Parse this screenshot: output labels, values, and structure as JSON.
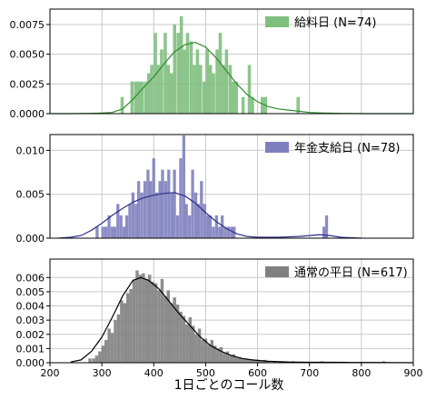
{
  "chart_data": {
    "type": "histogram",
    "xlabel": "1日ごとのコール数",
    "xlim": [
      200,
      900
    ],
    "xticks": [
      200,
      300,
      400,
      500,
      600,
      700,
      800,
      900
    ],
    "shared_x": true,
    "grid": true,
    "legend_position": "top-right",
    "panels": [
      {
        "legend": "給料日 (N=74)",
        "color": "#7fbf7f",
        "line_color": "#2e8b2e",
        "ylim": [
          0,
          0.0088
        ],
        "yticks": [
          "0.0000",
          "0.0025",
          "0.0050",
          "0.0075"
        ],
        "ytick_values": [
          0,
          0.0025,
          0.005,
          0.0075
        ],
        "bins": [
          [
            336,
            0.0014
          ],
          [
            355,
            0.0027
          ],
          [
            362,
            0.0027
          ],
          [
            368,
            0.0027
          ],
          [
            374,
            0.0027
          ],
          [
            381,
            0.0027
          ],
          [
            387,
            0.0034
          ],
          [
            393,
            0.0041
          ],
          [
            400,
            0.0068
          ],
          [
            406,
            0.0041
          ],
          [
            412,
            0.0054
          ],
          [
            419,
            0.0068
          ],
          [
            425,
            0.0041
          ],
          [
            431,
            0.0034
          ],
          [
            437,
            0.0075
          ],
          [
            444,
            0.0068
          ],
          [
            450,
            0.0082
          ],
          [
            456,
            0.0054
          ],
          [
            462,
            0.0068
          ],
          [
            469,
            0.0061
          ],
          [
            475,
            0.0041
          ],
          [
            481,
            0.0054
          ],
          [
            487,
            0.0041
          ],
          [
            494,
            0.0027
          ],
          [
            500,
            0.0054
          ],
          [
            506,
            0.0041
          ],
          [
            512,
            0.0034
          ],
          [
            519,
            0.0054
          ],
          [
            525,
            0.0068
          ],
          [
            531,
            0.0041
          ],
          [
            537,
            0.0054
          ],
          [
            544,
            0.0041
          ],
          [
            550,
            0.0027
          ],
          [
            556,
            0.0027
          ],
          [
            569,
            0.0014
          ],
          [
            581,
            0.0041
          ],
          [
            587,
            0.0014
          ],
          [
            606,
            0.0014
          ],
          [
            612,
            0.0014
          ],
          [
            675,
            0.0014
          ]
        ],
        "bin_width": 6.25,
        "kde": [
          [
            200,
            0
          ],
          [
            240,
            0
          ],
          [
            280,
            2e-05
          ],
          [
            300,
            5e-05
          ],
          [
            320,
            0.0001
          ],
          [
            340,
            0.0004
          ],
          [
            360,
            0.0012
          ],
          [
            380,
            0.0022
          ],
          [
            400,
            0.0031
          ],
          [
            420,
            0.0042
          ],
          [
            440,
            0.0052
          ],
          [
            460,
            0.0058
          ],
          [
            480,
            0.006
          ],
          [
            500,
            0.0056
          ],
          [
            520,
            0.0047
          ],
          [
            540,
            0.0036
          ],
          [
            560,
            0.0025
          ],
          [
            580,
            0.0016
          ],
          [
            600,
            0.001
          ],
          [
            620,
            0.0006
          ],
          [
            640,
            0.0004
          ],
          [
            660,
            0.0003
          ],
          [
            680,
            0.0002
          ],
          [
            700,
            0.0001
          ],
          [
            720,
            6e-05
          ],
          [
            760,
            2e-05
          ],
          [
            800,
            0
          ],
          [
            900,
            0
          ]
        ]
      },
      {
        "legend": "年金支給日 (N=78)",
        "color": "#7f7fbf",
        "line_color": "#2e2e8b",
        "ylim": [
          0,
          0.0118
        ],
        "yticks": [
          "0.000",
          "0.005",
          "0.010"
        ],
        "ytick_values": [
          0,
          0.005,
          0.01
        ],
        "bins": [
          [
            288,
            0.0013
          ],
          [
            299,
            0.0013
          ],
          [
            305,
            0.0013
          ],
          [
            311,
            0.0026
          ],
          [
            317,
            0.0013
          ],
          [
            322,
            0.0013
          ],
          [
            328,
            0.0039
          ],
          [
            334,
            0.0026
          ],
          [
            340,
            0.0013
          ],
          [
            345,
            0.0026
          ],
          [
            351,
            0.0039
          ],
          [
            357,
            0.0052
          ],
          [
            363,
            0.0039
          ],
          [
            368,
            0.0065
          ],
          [
            374,
            0.0052
          ],
          [
            380,
            0.0065
          ],
          [
            386,
            0.0078
          ],
          [
            391,
            0.0065
          ],
          [
            397,
            0.0091
          ],
          [
            403,
            0.0052
          ],
          [
            409,
            0.0065
          ],
          [
            414,
            0.0078
          ],
          [
            420,
            0.0065
          ],
          [
            426,
            0.0078
          ],
          [
            432,
            0.0052
          ],
          [
            437,
            0.0078
          ],
          [
            443,
            0.0026
          ],
          [
            449,
            0.0091
          ],
          [
            455,
            0.0117
          ],
          [
            460,
            0.0039
          ],
          [
            466,
            0.0026
          ],
          [
            472,
            0.0078
          ],
          [
            478,
            0.0052
          ],
          [
            483,
            0.0039
          ],
          [
            489,
            0.0065
          ],
          [
            495,
            0.0039
          ],
          [
            501,
            0.0026
          ],
          [
            506,
            0.0026
          ],
          [
            512,
            0.0013
          ],
          [
            518,
            0.0026
          ],
          [
            524,
            0.0013
          ],
          [
            529,
            0.0026
          ],
          [
            535,
            0.0013
          ],
          [
            541,
            0.0013
          ],
          [
            547,
            0.0013
          ],
          [
            552,
            0.0013
          ],
          [
            725,
            0.0013
          ],
          [
            730,
            0.0026
          ]
        ],
        "bin_width": 5.75,
        "kde": [
          [
            215,
            0
          ],
          [
            240,
            0.0001
          ],
          [
            260,
            0.0003
          ],
          [
            280,
            0.0009
          ],
          [
            300,
            0.0017
          ],
          [
            320,
            0.0026
          ],
          [
            340,
            0.0034
          ],
          [
            360,
            0.0041
          ],
          [
            380,
            0.0046
          ],
          [
            400,
            0.0049
          ],
          [
            420,
            0.0051
          ],
          [
            440,
            0.0052
          ],
          [
            460,
            0.0048
          ],
          [
            480,
            0.004
          ],
          [
            500,
            0.0029
          ],
          [
            520,
            0.0019
          ],
          [
            540,
            0.0011
          ],
          [
            560,
            0.0005
          ],
          [
            580,
            0.0002
          ],
          [
            600,
            0.0001
          ],
          [
            640,
            0.0001
          ],
          [
            680,
            0.0002
          ],
          [
            700,
            0.0003
          ],
          [
            720,
            0.0004
          ],
          [
            740,
            0.0003
          ],
          [
            760,
            0.0001
          ],
          [
            800,
            0
          ]
        ]
      },
      {
        "legend": "通常の平日 (N=617)",
        "color": "#808080",
        "line_color": "#000000",
        "ylim": [
          0,
          0.0073
        ],
        "yticks": [
          "0.000",
          "0.001",
          "0.002",
          "0.003",
          "0.004",
          "0.005",
          "0.006"
        ],
        "ytick_values": [
          0,
          0.001,
          0.002,
          0.003,
          0.004,
          0.005,
          0.006
        ],
        "bins": [
          [
            274,
            0.0003
          ],
          [
            281,
            0.0003
          ],
          [
            287,
            0.0005
          ],
          [
            293,
            0.0008
          ],
          [
            299,
            0.0012
          ],
          [
            305,
            0.0016
          ],
          [
            311,
            0.0024
          ],
          [
            317,
            0.0021
          ],
          [
            323,
            0.003
          ],
          [
            329,
            0.0034
          ],
          [
            335,
            0.0044
          ],
          [
            341,
            0.0042
          ],
          [
            347,
            0.0049
          ],
          [
            353,
            0.0052
          ],
          [
            359,
            0.0058
          ],
          [
            365,
            0.0065
          ],
          [
            371,
            0.0062
          ],
          [
            377,
            0.0063
          ],
          [
            383,
            0.0059
          ],
          [
            389,
            0.0062
          ],
          [
            395,
            0.0057
          ],
          [
            401,
            0.0056
          ],
          [
            407,
            0.0051
          ],
          [
            413,
            0.0059
          ],
          [
            419,
            0.0047
          ],
          [
            425,
            0.0051
          ],
          [
            431,
            0.0042
          ],
          [
            437,
            0.0046
          ],
          [
            443,
            0.0041
          ],
          [
            449,
            0.0036
          ],
          [
            455,
            0.0033
          ],
          [
            461,
            0.0027
          ],
          [
            467,
            0.0032
          ],
          [
            473,
            0.0026
          ],
          [
            479,
            0.002
          ],
          [
            485,
            0.0024
          ],
          [
            491,
            0.0016
          ],
          [
            497,
            0.0017
          ],
          [
            503,
            0.0013
          ],
          [
            509,
            0.0016
          ],
          [
            515,
            0.0012
          ],
          [
            521,
            0.001
          ],
          [
            527,
            0.0011
          ],
          [
            533,
            0.0007
          ],
          [
            539,
            0.0008
          ],
          [
            545,
            0.0005
          ],
          [
            551,
            0.0006
          ],
          [
            557,
            0.0004
          ],
          [
            563,
            0.0004
          ],
          [
            569,
            0.0003
          ],
          [
            575,
            0.0003
          ],
          [
            581,
            0.0002
          ],
          [
            587,
            0.0002
          ],
          [
            593,
            0.0002
          ],
          [
            599,
            0.0002
          ],
          [
            605,
            0.0001
          ],
          [
            611,
            0.0002
          ],
          [
            617,
            0.0001
          ],
          [
            629,
            0.0001
          ],
          [
            641,
            0.0001
          ],
          [
            665,
            0.0001
          ],
          [
            721,
            0.0001
          ],
          [
            840,
            0.0001
          ]
        ],
        "bin_width": 6,
        "kde": [
          [
            240,
            5e-05
          ],
          [
            260,
            0.0002
          ],
          [
            280,
            0.0008
          ],
          [
            300,
            0.0018
          ],
          [
            320,
            0.0032
          ],
          [
            340,
            0.0047
          ],
          [
            360,
            0.0058
          ],
          [
            375,
            0.006
          ],
          [
            390,
            0.0058
          ],
          [
            410,
            0.0052
          ],
          [
            430,
            0.0043
          ],
          [
            450,
            0.0034
          ],
          [
            470,
            0.0026
          ],
          [
            490,
            0.0018
          ],
          [
            510,
            0.0012
          ],
          [
            530,
            0.0008
          ],
          [
            550,
            0.0005
          ],
          [
            570,
            0.0003
          ],
          [
            590,
            0.0002
          ],
          [
            620,
            0.0001
          ],
          [
            660,
            5e-05
          ],
          [
            700,
            3e-05
          ],
          [
            740,
            3e-05
          ],
          [
            780,
            2e-05
          ],
          [
            820,
            2e-05
          ],
          [
            860,
            1e-05
          ],
          [
            900,
            0
          ]
        ]
      }
    ]
  }
}
